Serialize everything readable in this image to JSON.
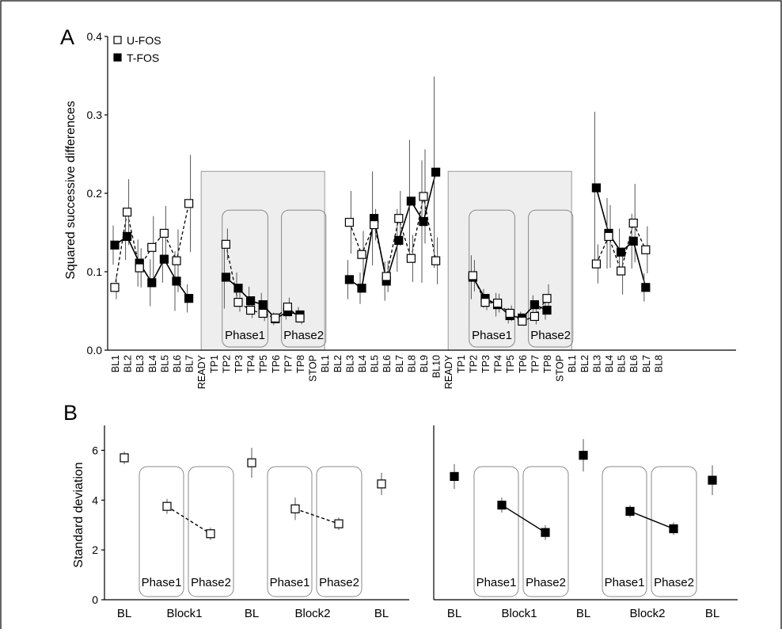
{
  "chart_data": [
    {
      "panel_label": "A",
      "type": "line",
      "ylabel": "Squared successive differences",
      "ylim": [
        0.0,
        0.4
      ],
      "yticks": [
        "0.0",
        "0.1",
        "0.2",
        "0.3",
        "0.4"
      ],
      "x_tick_labels": [
        "BL1",
        "BL2",
        "BL3",
        "BL4",
        "BL5",
        "BL6",
        "BL7",
        "READY",
        "TP1",
        "TP2",
        "TP3",
        "TP4",
        "TP5",
        "TP6",
        "TP7",
        "TP8",
        "STOP",
        "BL1",
        "BL2",
        "BL3",
        "BL4",
        "BL5",
        "BL6",
        "BL7",
        "BL8",
        "BL9",
        "BL10",
        "READY",
        "TP1",
        "TP2",
        "TP3",
        "TP4",
        "TP5",
        "TP6",
        "TP7",
        "TP8",
        "STOP",
        "BL1",
        "BL2",
        "BL3",
        "BL4",
        "BL5",
        "BL6",
        "BL7",
        "BL8"
      ],
      "legend": [
        "U-FOS",
        "T-FOS"
      ],
      "legend_position": "top-left",
      "phase_labels": [
        "Phase1",
        "Phase2"
      ],
      "segments": [
        {
          "x_start": 0,
          "u": [
            [
              0.08,
              0.015
            ],
            [
              0.176,
              0.042
            ],
            [
              0.105,
              0.025
            ],
            [
              0.131,
              0.04
            ],
            [
              0.149,
              0.035
            ],
            [
              0.114,
              0.04
            ],
            [
              0.187,
              0.062
            ]
          ],
          "t": [
            [
              0.134,
              0.025
            ],
            [
              0.145,
              0.03
            ],
            [
              0.111,
              0.03
            ],
            [
              0.086,
              0.03
            ],
            [
              0.116,
              0.03
            ],
            [
              0.088,
              0.038
            ],
            [
              0.066,
              0.018
            ]
          ]
        },
        {
          "x_start": 9,
          "u": [
            [
              0.135,
              0.02
            ],
            [
              0.061,
              0.012
            ],
            [
              0.051,
              0.01
            ],
            [
              0.047,
              0.01
            ],
            [
              0.041,
              0.006
            ],
            [
              0.055,
              0.012
            ],
            [
              0.041,
              0.008
            ]
          ],
          "t": [
            [
              0.093,
              0.04
            ],
            [
              0.079,
              0.02
            ],
            [
              0.063,
              0.018
            ],
            [
              0.058,
              0.015
            ],
            [
              0.04,
              0.008
            ],
            [
              0.049,
              0.01
            ],
            [
              0.045,
              0.01
            ]
          ]
        },
        {
          "x_start": 19,
          "u": [
            [
              0.163,
              0.04
            ],
            [
              0.122,
              0.03
            ],
            [
              0.16,
              0.02
            ],
            [
              0.094,
              0.02
            ],
            [
              0.168,
              0.035
            ],
            [
              0.117,
              0.03
            ],
            [
              0.196,
              0.06
            ],
            [
              0.114,
              0.03
            ]
          ],
          "t": [
            [
              0.09,
              0.025
            ],
            [
              0.079,
              0.02
            ],
            [
              0.168,
              0.06
            ],
            [
              0.088,
              0.025
            ],
            [
              0.14,
              0.04
            ],
            [
              0.19,
              0.078
            ],
            [
              0.164,
              0.078
            ],
            [
              0.227,
              0.122
            ]
          ]
        },
        {
          "x_start": 29,
          "u": [
            [
              0.095,
              0.02
            ],
            [
              0.061,
              0.01
            ],
            [
              0.06,
              0.012
            ],
            [
              0.047,
              0.01
            ],
            [
              0.037,
              0.006
            ],
            [
              0.043,
              0.01
            ],
            [
              0.066,
              0.018
            ]
          ],
          "t": [
            [
              0.093,
              0.028
            ],
            [
              0.066,
              0.012
            ],
            [
              0.058,
              0.015
            ],
            [
              0.044,
              0.01
            ],
            [
              0.041,
              0.008
            ],
            [
              0.058,
              0.012
            ],
            [
              0.051,
              0.012
            ]
          ]
        },
        {
          "x_start": 39,
          "u": [
            [
              0.11,
              0.025
            ],
            [
              0.145,
              0.04
            ],
            [
              0.101,
              0.03
            ],
            [
              0.162,
              0.05
            ],
            [
              0.128,
              0.03
            ]
          ],
          "t": [
            [
              0.207,
              0.097
            ],
            [
              0.149,
              0.045
            ],
            [
              0.125,
              0.03
            ],
            [
              0.139,
              0.035
            ],
            [
              0.08,
              0.018
            ]
          ]
        }
      ]
    },
    {
      "panel_label": "B",
      "type": "scatter",
      "ylabel": "Standard deviation",
      "ylim": [
        0,
        7
      ],
      "yticks": [
        "0",
        "2",
        "4",
        "6"
      ],
      "x_groups": [
        "BL",
        "Block1",
        "BL",
        "Block2",
        "BL"
      ],
      "phase_labels": [
        "Phase1",
        "Phase2"
      ],
      "subpanels": [
        {
          "series": "U-FOS",
          "bl": [
            [
              5.7,
              0.25
            ],
            [
              5.5,
              0.6
            ],
            [
              4.65,
              0.45
            ]
          ],
          "block1": [
            [
              3.75,
              0.3
            ],
            [
              2.65,
              0.25
            ]
          ],
          "block2": [
            [
              3.65,
              0.45
            ],
            [
              3.05,
              0.25
            ]
          ]
        },
        {
          "series": "T-FOS",
          "bl": [
            [
              4.95,
              0.5
            ],
            [
              5.8,
              0.65
            ],
            [
              4.8,
              0.6
            ]
          ],
          "block1": [
            [
              3.8,
              0.3
            ],
            [
              2.7,
              0.3
            ]
          ],
          "block2": [
            [
              3.55,
              0.25
            ],
            [
              2.85,
              0.25
            ]
          ]
        }
      ]
    }
  ]
}
